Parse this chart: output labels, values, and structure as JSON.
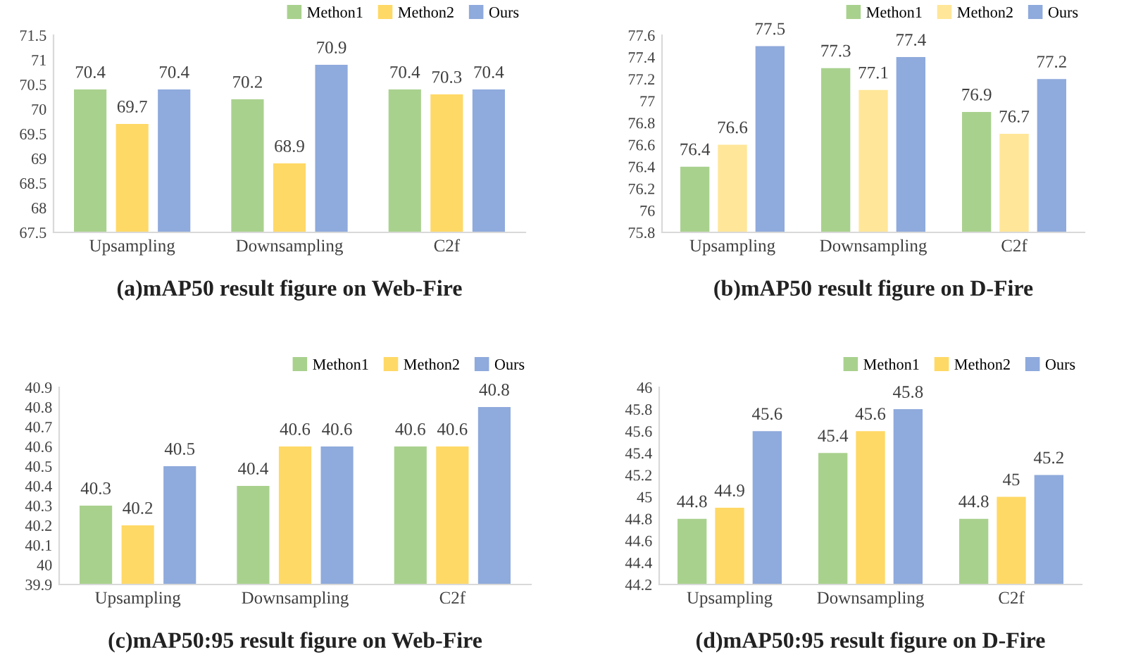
{
  "chart_data": [
    {
      "type": "bar",
      "title": "(a)mAP50 result figure on Web-Fire",
      "categories": [
        "Upsampling",
        "Downsampling",
        "C2f"
      ],
      "series": [
        {
          "name": "Methon1",
          "color": "#a9d18e",
          "values": [
            70.4,
            70.2,
            70.4
          ]
        },
        {
          "name": "Methon2",
          "color": "#ffd966",
          "values": [
            69.7,
            68.9,
            70.3
          ]
        },
        {
          "name": "Ours",
          "color": "#8faadc",
          "values": [
            70.4,
            70.9,
            70.4
          ]
        }
      ],
      "ylim": [
        67.5,
        71.5
      ],
      "yticks": [
        67.5,
        68,
        68.5,
        69,
        69.5,
        70,
        70.5,
        71,
        71.5
      ],
      "data_labels": true,
      "grid": false,
      "legend": "top right"
    },
    {
      "type": "bar",
      "title": "(b)mAP50 result figure on D-Fire",
      "categories": [
        "Upsampling",
        "Downsampling",
        "C2f"
      ],
      "series": [
        {
          "name": "Methon1",
          "color": "#a9d18e",
          "values": [
            76.4,
            77.3,
            76.9
          ]
        },
        {
          "name": "Methon2",
          "color": "#ffe699",
          "values": [
            76.6,
            77.1,
            76.7
          ]
        },
        {
          "name": "Ours",
          "color": "#8faadc",
          "values": [
            77.5,
            77.4,
            77.2
          ]
        }
      ],
      "ylim": [
        75.8,
        77.6
      ],
      "yticks": [
        75.8,
        76,
        76.2,
        76.4,
        76.6,
        76.8,
        77,
        77.2,
        77.4,
        77.6
      ],
      "data_labels": true,
      "grid": false,
      "legend": "top right"
    },
    {
      "type": "bar",
      "title": "(c)mAP50:95 result figure on Web-Fire",
      "categories": [
        "Upsampling",
        "Downsampling",
        "C2f"
      ],
      "series": [
        {
          "name": "Methon1",
          "color": "#a9d18e",
          "values": [
            40.3,
            40.4,
            40.6
          ]
        },
        {
          "name": "Methon2",
          "color": "#ffd966",
          "values": [
            40.2,
            40.6,
            40.6
          ]
        },
        {
          "name": "Ours",
          "color": "#8faadc",
          "values": [
            40.5,
            40.6,
            40.8
          ]
        }
      ],
      "ylim": [
        39.9,
        40.9
      ],
      "yticks": [
        39.9,
        40,
        40.1,
        40.2,
        40.3,
        40.4,
        40.5,
        40.6,
        40.7,
        40.8,
        40.9
      ],
      "data_labels": true,
      "grid": false,
      "legend": "top right"
    },
    {
      "type": "bar",
      "title": "(d)mAP50:95 result figure on D-Fire",
      "categories": [
        "Upsampling",
        "Downsampling",
        "C2f"
      ],
      "series": [
        {
          "name": "Methon1",
          "color": "#a9d18e",
          "values": [
            44.8,
            45.4,
            44.8
          ]
        },
        {
          "name": "Methon2",
          "color": "#ffd966",
          "values": [
            44.9,
            45.6,
            45
          ]
        },
        {
          "name": "Ours",
          "color": "#8faadc",
          "values": [
            45.6,
            45.8,
            45.2
          ]
        }
      ],
      "ylim": [
        44.2,
        46
      ],
      "yticks": [
        44.2,
        44.4,
        44.6,
        44.8,
        45,
        45.2,
        45.4,
        45.6,
        45.8,
        46
      ],
      "data_labels": true,
      "grid": false,
      "legend": "top right"
    }
  ]
}
